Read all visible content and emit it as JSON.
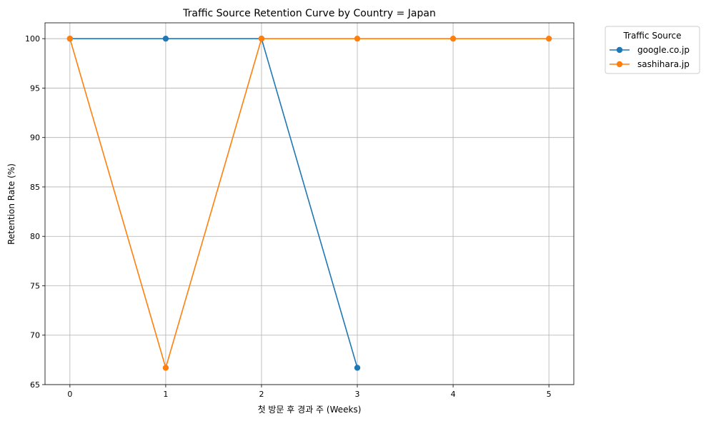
{
  "chart_data": {
    "type": "line",
    "title": "Traffic Source Retention Curve by Country = Japan",
    "xlabel": "첫 방문 후 경과 주 (Weeks)",
    "ylabel": "Retention Rate (%)",
    "x_ticks": [
      0,
      1,
      2,
      3,
      4,
      5
    ],
    "y_ticks": [
      65,
      70,
      75,
      80,
      85,
      90,
      95,
      100
    ],
    "xlim": [
      -0.26,
      5.26
    ],
    "ylim": [
      65,
      101.6
    ],
    "grid": true,
    "legend": {
      "title": "Traffic Source",
      "placement": "outside-top-right"
    },
    "series": [
      {
        "name": "google.co.jp",
        "color": "#1f77b4",
        "x": [
          0,
          1,
          2,
          3
        ],
        "y": [
          100,
          100,
          100,
          66.7
        ]
      },
      {
        "name": "sashihara.jp",
        "color": "#ff7f0e",
        "x": [
          0,
          1,
          2,
          3,
          4,
          5
        ],
        "y": [
          100,
          66.7,
          100,
          100,
          100,
          100
        ]
      }
    ]
  }
}
